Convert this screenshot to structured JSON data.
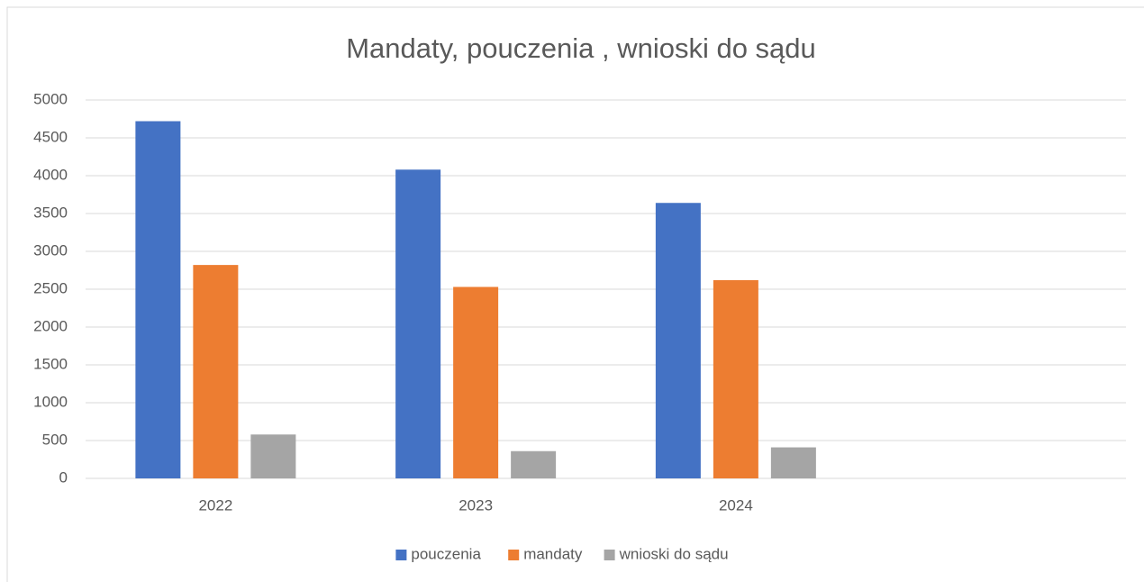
{
  "chart_data": {
    "type": "bar",
    "title": "Mandaty, pouczenia , wnioski do sądu",
    "categories": [
      "2022",
      "2023",
      "2024",
      null
    ],
    "series": [
      {
        "name": "pouczenia",
        "color": "#4472c4",
        "values": [
          4720,
          4080,
          3640,
          null
        ]
      },
      {
        "name": "mandaty",
        "color": "#ed7d31",
        "values": [
          2820,
          2530,
          2620,
          null
        ]
      },
      {
        "name": "wnioski do sądu",
        "color": "#a5a5a5",
        "values": [
          580,
          360,
          410,
          null
        ]
      }
    ],
    "ylim": [
      0,
      5000
    ],
    "yticks": [
      0,
      500,
      1000,
      1500,
      2000,
      2500,
      3000,
      3500,
      4000,
      4500,
      5000
    ],
    "grid": true,
    "legend": "bottom"
  }
}
